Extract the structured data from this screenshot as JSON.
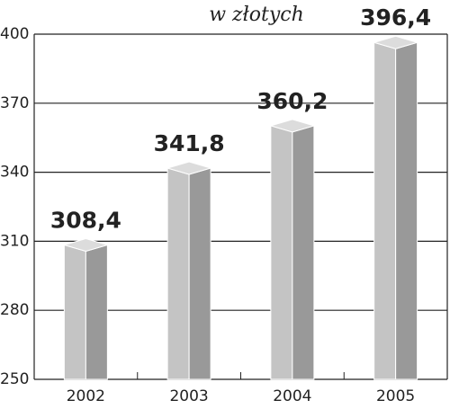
{
  "chart_data": {
    "type": "bar3d",
    "subtitle": "w złotych",
    "categories": [
      "2002",
      "2003",
      "2004",
      "2005"
    ],
    "values": [
      308.4,
      341.8,
      360.2,
      396.4
    ],
    "value_labels": [
      "308,4",
      "341,8",
      "360,2",
      "396,4"
    ],
    "color": "#c4c4c4",
    "ylim": [
      250,
      400
    ],
    "yticks": [
      250,
      280,
      310,
      340,
      370,
      400
    ],
    "grid": true
  }
}
